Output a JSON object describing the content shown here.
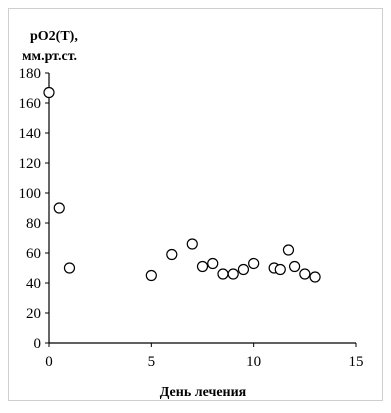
{
  "chart_data": {
    "type": "scatter",
    "title": "",
    "ylabel_line1": "pO2(T),",
    "ylabel_line2": "мм.рт.ст.",
    "xlabel": "День лечения",
    "xlim": [
      0,
      15
    ],
    "ylim": [
      0,
      180
    ],
    "xticks": [
      0,
      5,
      10,
      15
    ],
    "yticks": [
      0,
      20,
      40,
      60,
      80,
      100,
      120,
      140,
      160,
      180
    ],
    "grid": false,
    "legend": "none",
    "marker": "open-circle",
    "marker_color": "#000000",
    "series": [
      {
        "x": [
          0,
          0.5,
          1,
          5,
          6,
          7,
          7.5,
          8,
          8.5,
          9,
          9.5,
          10,
          11,
          11.3,
          11.7,
          12,
          12.5,
          13
        ],
        "y": [
          167,
          90,
          50,
          45,
          59,
          66,
          51,
          53,
          46,
          46,
          49,
          53,
          50,
          49,
          62,
          51,
          46,
          44
        ]
      }
    ]
  }
}
